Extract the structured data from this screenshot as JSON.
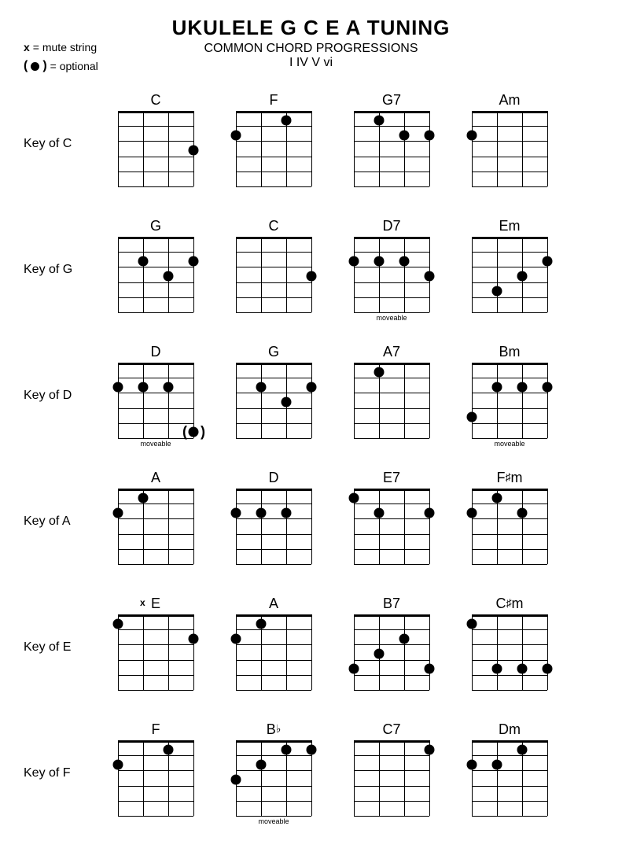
{
  "title": "UKULELE G C E A TUNING",
  "subtitle": "COMMON CHORD PROGRESSIONS",
  "subtitle2": "I IV V vi",
  "legend": {
    "mute": "= mute string",
    "optional": "= optional"
  },
  "layout": {
    "strings": 4,
    "frets": 5,
    "board_width": 96,
    "board_height": 96,
    "dot_diameter": 13,
    "colors": {
      "line": "#000000",
      "dot": "#000000",
      "bg": "#ffffff"
    }
  },
  "rows": [
    {
      "label": "Key of C",
      "chords": [
        {
          "name": "C",
          "dots": [
            {
              "s": 4,
              "f": 3
            }
          ],
          "mute": [],
          "optional": [],
          "footnote": ""
        },
        {
          "name": "F",
          "dots": [
            {
              "s": 1,
              "f": 2
            },
            {
              "s": 3,
              "f": 1
            }
          ],
          "mute": [],
          "optional": [],
          "footnote": ""
        },
        {
          "name": "G7",
          "dots": [
            {
              "s": 2,
              "f": 1
            },
            {
              "s": 3,
              "f": 2
            },
            {
              "s": 4,
              "f": 2
            }
          ],
          "mute": [],
          "optional": [],
          "footnote": ""
        },
        {
          "name": "Am",
          "dots": [
            {
              "s": 1,
              "f": 2
            }
          ],
          "mute": [],
          "optional": [],
          "footnote": ""
        }
      ]
    },
    {
      "label": "Key of G",
      "chords": [
        {
          "name": "G",
          "dots": [
            {
              "s": 2,
              "f": 2
            },
            {
              "s": 3,
              "f": 3
            },
            {
              "s": 4,
              "f": 2
            }
          ],
          "mute": [],
          "optional": [],
          "footnote": ""
        },
        {
          "name": "C",
          "dots": [
            {
              "s": 4,
              "f": 3
            }
          ],
          "mute": [],
          "optional": [],
          "footnote": ""
        },
        {
          "name": "D7",
          "dots": [
            {
              "s": 1,
              "f": 2
            },
            {
              "s": 2,
              "f": 2
            },
            {
              "s": 3,
              "f": 2
            },
            {
              "s": 4,
              "f": 3
            }
          ],
          "mute": [],
          "optional": [],
          "footnote": "moveable"
        },
        {
          "name": "Em",
          "dots": [
            {
              "s": 2,
              "f": 4
            },
            {
              "s": 3,
              "f": 3
            },
            {
              "s": 4,
              "f": 2
            }
          ],
          "mute": [],
          "optional": [],
          "footnote": ""
        }
      ]
    },
    {
      "label": "Key of D",
      "chords": [
        {
          "name": "D",
          "dots": [
            {
              "s": 1,
              "f": 2
            },
            {
              "s": 2,
              "f": 2
            },
            {
              "s": 3,
              "f": 2
            }
          ],
          "mute": [],
          "optional": [
            {
              "s": 4,
              "f": 5
            }
          ],
          "footnote": "moveable"
        },
        {
          "name": "G",
          "dots": [
            {
              "s": 2,
              "f": 2
            },
            {
              "s": 3,
              "f": 3
            },
            {
              "s": 4,
              "f": 2
            }
          ],
          "mute": [],
          "optional": [],
          "footnote": ""
        },
        {
          "name": "A7",
          "dots": [
            {
              "s": 2,
              "f": 1
            }
          ],
          "mute": [],
          "optional": [],
          "footnote": ""
        },
        {
          "name": "Bm",
          "dots": [
            {
              "s": 1,
              "f": 4
            },
            {
              "s": 2,
              "f": 2
            },
            {
              "s": 3,
              "f": 2
            },
            {
              "s": 4,
              "f": 2
            }
          ],
          "mute": [],
          "optional": [],
          "footnote": "moveable"
        }
      ]
    },
    {
      "label": "Key of A",
      "chords": [
        {
          "name": "A",
          "dots": [
            {
              "s": 1,
              "f": 2
            },
            {
              "s": 2,
              "f": 1
            }
          ],
          "mute": [],
          "optional": [],
          "footnote": ""
        },
        {
          "name": "D",
          "dots": [
            {
              "s": 1,
              "f": 2
            },
            {
              "s": 2,
              "f": 2
            },
            {
              "s": 3,
              "f": 2
            }
          ],
          "mute": [],
          "optional": [],
          "footnote": ""
        },
        {
          "name": "E7",
          "dots": [
            {
              "s": 1,
              "f": 1
            },
            {
              "s": 2,
              "f": 2
            },
            {
              "s": 4,
              "f": 2
            }
          ],
          "mute": [],
          "optional": [],
          "footnote": ""
        },
        {
          "name": "F♯m",
          "dots": [
            {
              "s": 1,
              "f": 2
            },
            {
              "s": 2,
              "f": 1
            },
            {
              "s": 3,
              "f": 2
            }
          ],
          "mute": [],
          "optional": [],
          "footnote": ""
        }
      ]
    },
    {
      "label": "Key of E",
      "chords": [
        {
          "name": "E",
          "dots": [
            {
              "s": 1,
              "f": 1
            },
            {
              "s": 4,
              "f": 2
            }
          ],
          "mute": [
            2
          ],
          "optional": [],
          "footnote": ""
        },
        {
          "name": "A",
          "dots": [
            {
              "s": 1,
              "f": 2
            },
            {
              "s": 2,
              "f": 1
            }
          ],
          "mute": [],
          "optional": [],
          "footnote": ""
        },
        {
          "name": "B7",
          "dots": [
            {
              "s": 1,
              "f": 4
            },
            {
              "s": 2,
              "f": 3
            },
            {
              "s": 3,
              "f": 2
            },
            {
              "s": 4,
              "f": 4
            }
          ],
          "mute": [],
          "optional": [],
          "footnote": ""
        },
        {
          "name": "C♯m",
          "dots": [
            {
              "s": 1,
              "f": 1
            },
            {
              "s": 2,
              "f": 4
            },
            {
              "s": 3,
              "f": 4
            },
            {
              "s": 4,
              "f": 4
            }
          ],
          "mute": [],
          "optional": [],
          "footnote": ""
        }
      ]
    },
    {
      "label": "Key of F",
      "chords": [
        {
          "name": "F",
          "dots": [
            {
              "s": 1,
              "f": 2
            },
            {
              "s": 3,
              "f": 1
            }
          ],
          "mute": [],
          "optional": [],
          "footnote": ""
        },
        {
          "name": "B♭",
          "dots": [
            {
              "s": 1,
              "f": 3
            },
            {
              "s": 2,
              "f": 2
            },
            {
              "s": 3,
              "f": 1
            },
            {
              "s": 4,
              "f": 1
            }
          ],
          "mute": [],
          "optional": [],
          "footnote": "moveable"
        },
        {
          "name": "C7",
          "dots": [
            {
              "s": 4,
              "f": 1
            }
          ],
          "mute": [],
          "optional": [],
          "footnote": ""
        },
        {
          "name": "Dm",
          "dots": [
            {
              "s": 1,
              "f": 2
            },
            {
              "s": 2,
              "f": 2
            },
            {
              "s": 3,
              "f": 1
            }
          ],
          "mute": [],
          "optional": [],
          "footnote": ""
        }
      ]
    }
  ]
}
